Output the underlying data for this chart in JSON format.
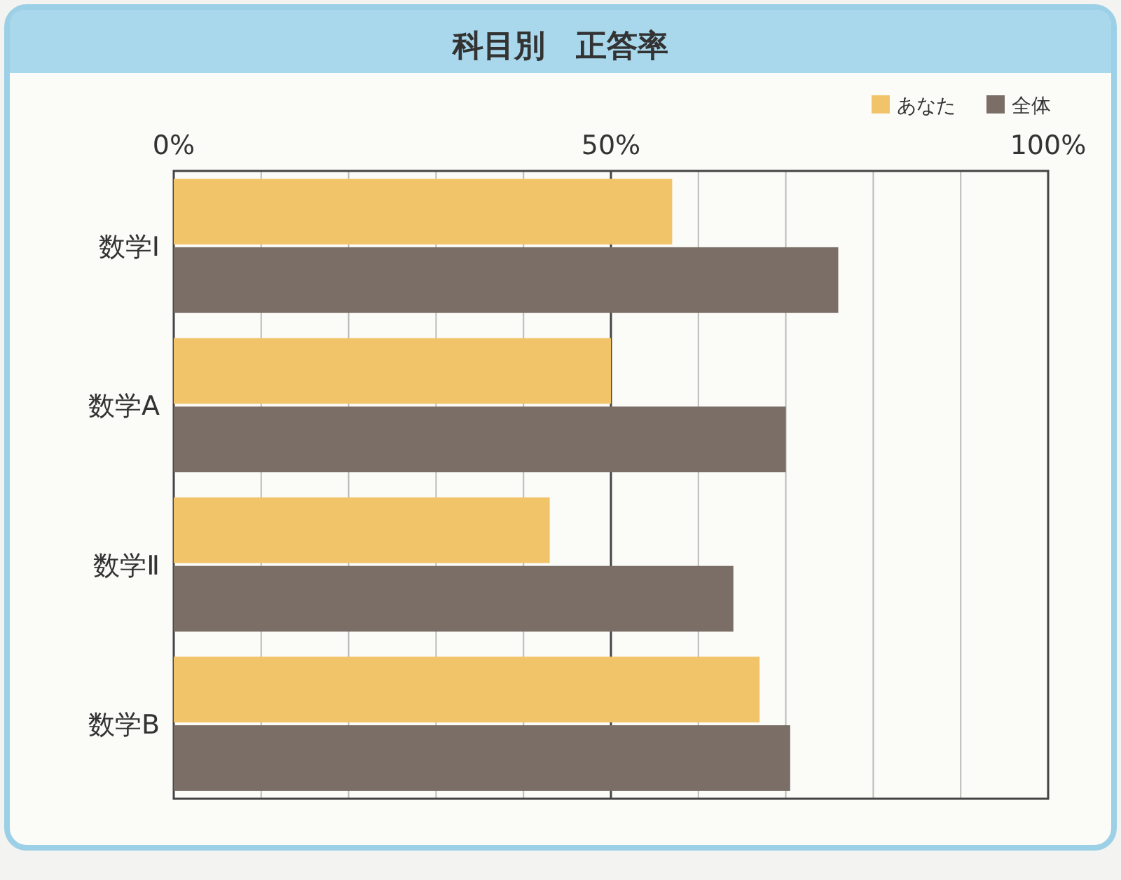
{
  "chart_data": {
    "type": "bar",
    "orientation": "horizontal",
    "title": "科目別　正答率",
    "categories": [
      "数学Ⅰ",
      "数学A",
      "数学Ⅱ",
      "数学B"
    ],
    "series": [
      {
        "name": "あなた",
        "color": "#f2c46a",
        "values": [
          57,
          50,
          43,
          67
        ]
      },
      {
        "name": "全体",
        "color": "#7b6e67",
        "values": [
          76,
          70,
          64,
          70.5
        ]
      }
    ],
    "xlim": [
      0,
      100
    ],
    "xticks": [
      {
        "value": 0,
        "label": "0%"
      },
      {
        "value": 10,
        "label": null
      },
      {
        "value": 20,
        "label": null
      },
      {
        "value": 30,
        "label": null
      },
      {
        "value": 40,
        "label": null
      },
      {
        "value": 50,
        "label": "50%"
      },
      {
        "value": 60,
        "label": null
      },
      {
        "value": 70,
        "label": null
      },
      {
        "value": 80,
        "label": null
      },
      {
        "value": 90,
        "label": null
      },
      {
        "value": 100,
        "label": "100%"
      }
    ],
    "ref_lines": [
      {
        "axis": "x",
        "value": 50,
        "color": "#444444"
      }
    ],
    "grid": true,
    "legend": "top right"
  }
}
